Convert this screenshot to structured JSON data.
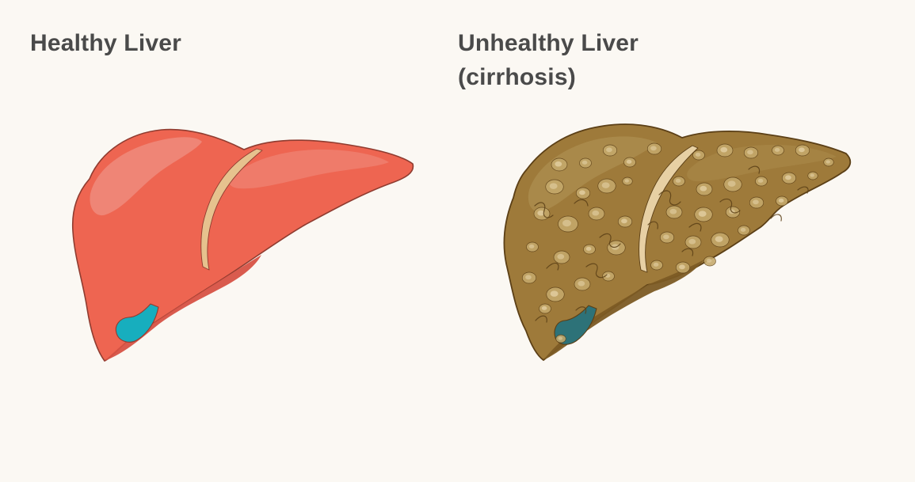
{
  "panels": [
    {
      "title_lines": [
        "Healthy Liver"
      ],
      "colors": {
        "tissue": "#ee6551",
        "shade": "#d75244",
        "highlight": "#f08e80",
        "ligament": "#e6c28e",
        "gallbladder": "#17aebe",
        "outline": "#8f3c30"
      }
    },
    {
      "title_lines": [
        "Unhealthy Liver",
        "(cirrhosis)"
      ],
      "colors": {
        "tissue": "#9e7a3a",
        "shade": "#7c5b24",
        "highlight": "#b39557",
        "nodule": "#c5a96b",
        "nodule_core": "#e1cd9f",
        "ligament": "#e7d0a4",
        "gallbladder": "#2d7278",
        "outline": "#5b3f16"
      }
    }
  ]
}
